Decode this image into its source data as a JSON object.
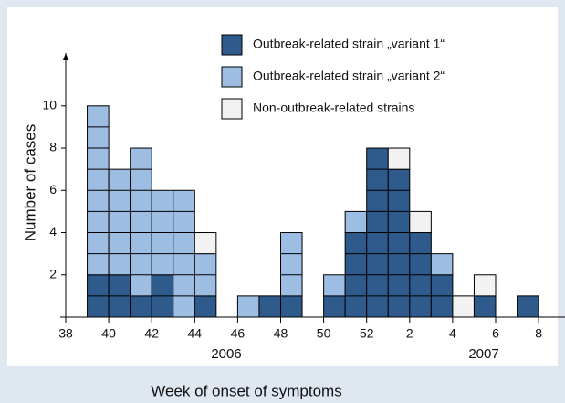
{
  "chart_data": {
    "type": "stacked_bar",
    "y_label": "Number of cases",
    "x_label": "Week of onset of symptoms",
    "annotations": [
      "2006",
      "2007"
    ],
    "categories": [
      "38",
      null,
      "40",
      null,
      "42",
      null,
      "44",
      null,
      "46",
      null,
      "48",
      null,
      "50",
      null,
      "52",
      null,
      "2",
      null,
      "4",
      null,
      "6",
      null,
      "8"
    ],
    "series": [
      {
        "name": "Outbreak-related strain „variant 1“",
        "color": "#2f5a8c",
        "values": [
          0,
          2,
          2,
          1,
          2,
          0,
          1,
          0,
          0,
          1,
          1,
          0,
          1,
          4,
          8,
          7,
          4,
          2,
          0,
          1,
          0,
          1,
          0
        ]
      },
      {
        "name": "Outbreak-related strain „variant 2“",
        "color": "#9dbde3",
        "values": [
          0,
          8,
          5,
          7,
          4,
          6,
          2,
          0,
          1,
          0,
          3,
          0,
          1,
          1,
          0,
          0,
          0,
          1,
          0,
          0,
          0,
          0,
          0
        ]
      },
      {
        "name": "Non-outbreak-related strains",
        "color": "#f2f2f2",
        "values": [
          0,
          0,
          0,
          0,
          0,
          0,
          1,
          0,
          0,
          0,
          0,
          0,
          0,
          0,
          0,
          1,
          1,
          0,
          1,
          1,
          0,
          0,
          0
        ]
      }
    ],
    "ylim": [
      0,
      12.5
    ],
    "yticks": [
      2,
      4,
      6,
      8,
      10
    ]
  }
}
